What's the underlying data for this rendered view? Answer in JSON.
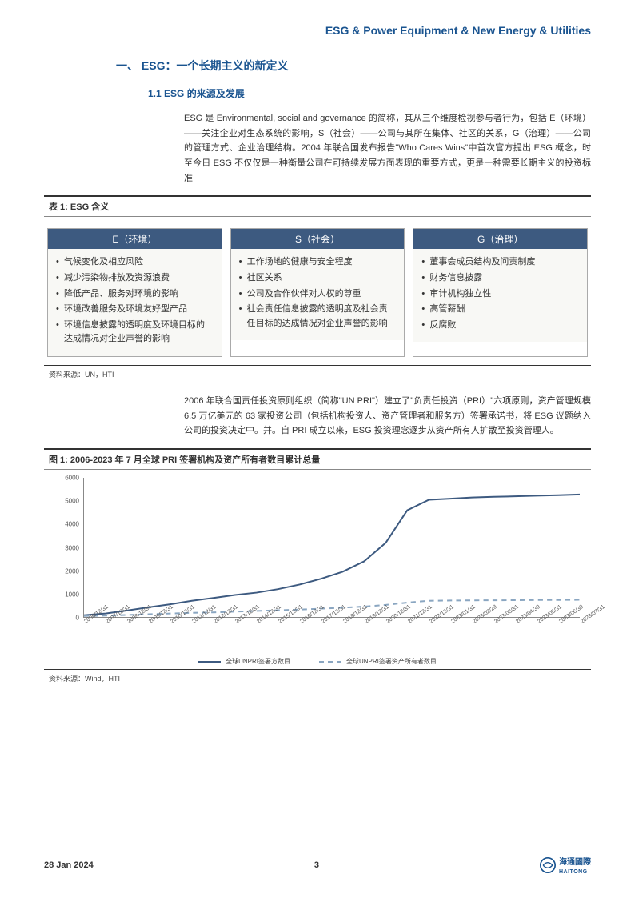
{
  "header": {
    "title": "ESG & Power Equipment & New Energy & Utilities"
  },
  "section1": {
    "heading": "一、 ESG：一个长期主义的新定义"
  },
  "section1_1": {
    "heading": "1.1 ESG 的来源及发展"
  },
  "para1": "ESG 是 Environmental, social and governance 的简称，其从三个维度检视参与者行为，包括 E（环境）——关注企业对生态系统的影响，S（社会）——公司与其所在集体、社区的关系，G（治理）——公司的管理方式、企业治理结构。2004 年联合国发布报告\"Who Cares Wins\"中首次官方提出 ESG 概念，时至今日 ESG 不仅仅是一种衡量公司在可持续发展方面表现的重要方式，更是一种需要长期主义的投资标准",
  "table1": {
    "title": "表 1: ESG 含义",
    "cols": [
      {
        "head": "E（环境）",
        "items": [
          "气候变化及相应风险",
          "减少污染物排放及资源浪费",
          "降低产品、服务对环境的影响",
          "环境改善服务及环境友好型产品",
          "环境信息披露的透明度及环境目标的达成情况对企业声誉的影响"
        ]
      },
      {
        "head": "S（社会）",
        "items": [
          "工作场地的健康与安全程度",
          "社区关系",
          "公司及合作伙伴对人权的尊重",
          "社会责任信息披露的透明度及社会责任目标的达成情况对企业声誉的影响"
        ]
      },
      {
        "head": "G（治理）",
        "items": [
          "董事会成员结构及问责制度",
          "财务信息披露",
          "审计机构独立性",
          "高管薪酬",
          "反腐败"
        ]
      }
    ],
    "source": "资料来源：UN，HTI"
  },
  "para2": "2006 年联合国责任投资原则组织（简称\"UN PRI\"）建立了\"负责任投资（PRI）\"六项原则，资产管理规模 6.5 万亿美元的 63 家投资公司（包括机构投资人、资产管理者和服务方）签署承诺书，将 ESG 议题纳入公司的投资决定中。并。自 PRI 成立以来，ESG 投资理念逐步从资产所有人扩散至投资管理人。",
  "chart": {
    "title": "图 1: 2006-2023 年 7 月全球 PRI 签署机构及资产所有者数目累计总量",
    "type": "line",
    "ylim": [
      0,
      6000
    ],
    "ytick_step": 1000,
    "background_color": "#ffffff",
    "axis_color": "#888888",
    "tick_fontsize": 8,
    "title_fontsize": 11,
    "x_labels": [
      "2006/12/31",
      "2007/12/31",
      "2008/12/31",
      "2009/12/31",
      "2010/12/31",
      "2011/12/31",
      "2012/12/31",
      "2013/12/31",
      "2014/12/31",
      "2015/12/31",
      "2016/12/31",
      "2017/12/31",
      "2018/12/31",
      "2019/12/31",
      "2020/12/31",
      "2021/12/31",
      "2022/12/31",
      "2023/01/31",
      "2023/02/28",
      "2023/03/31",
      "2023/04/30",
      "2023/05/31",
      "2023/06/30",
      "2023/07/31"
    ],
    "series": [
      {
        "label": "全球UNPRI签署方数目",
        "color": "#3d5a80",
        "line_width": 2,
        "dash": false,
        "values": [
          80,
          150,
          280,
          420,
          550,
          700,
          820,
          950,
          1050,
          1200,
          1400,
          1650,
          1950,
          2400,
          3200,
          4600,
          5050,
          5100,
          5150,
          5180,
          5200,
          5230,
          5250,
          5280
        ]
      },
      {
        "label": "全球UNPRI签署资产所有者数目",
        "color": "#8aa6c1",
        "line_width": 2,
        "dash": true,
        "values": [
          40,
          60,
          90,
          120,
          150,
          180,
          200,
          230,
          260,
          290,
          320,
          360,
          400,
          450,
          520,
          620,
          700,
          710,
          715,
          720,
          725,
          730,
          735,
          740
        ]
      }
    ],
    "source": "资料来源：Wind，HTI"
  },
  "footer": {
    "date": "28 Jan 2024",
    "page": "3",
    "logo_text": "海通國際",
    "logo_sub": "HAITONG"
  }
}
